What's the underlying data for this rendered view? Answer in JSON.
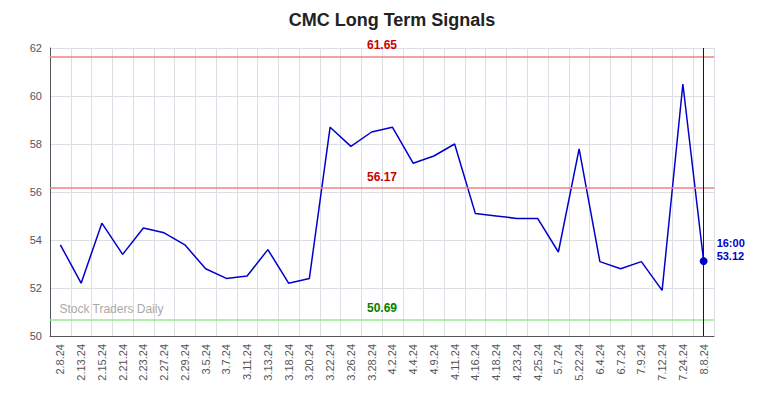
{
  "chart_data": {
    "type": "line",
    "title": "CMC Long Term Signals",
    "categories": [
      "2.8.24",
      "2.13.24",
      "2.15.24",
      "2.21.24",
      "2.23.24",
      "2.27.24",
      "2.29.24",
      "3.5.24",
      "3.7.24",
      "3.11.24",
      "3.13.24",
      "3.18.24",
      "3.20.24",
      "3.22.24",
      "3.26.24",
      "3.28.24",
      "4.2.24",
      "4.4.24",
      "4.9.24",
      "4.11.24",
      "4.16.24",
      "4.18.24",
      "4.23.24",
      "4.25.24",
      "5.7.24",
      "5.22.24",
      "6.4.24",
      "6.7.24",
      "7.9.24",
      "7.12.24",
      "7.24.24",
      "8.8.24"
    ],
    "values": [
      53.8,
      52.2,
      54.7,
      53.4,
      54.5,
      54.3,
      53.8,
      52.8,
      52.4,
      52.5,
      53.6,
      52.2,
      52.4,
      58.7,
      57.9,
      58.5,
      58.7,
      57.2,
      57.5,
      58.0,
      55.1,
      55.0,
      54.9,
      54.9,
      53.5,
      57.8,
      53.1,
      52.8,
      53.1,
      51.9,
      60.5,
      53.12
    ],
    "color": "#0000cc",
    "ylim": [
      50,
      62
    ],
    "yticks": [
      50,
      52,
      54,
      56,
      58,
      60,
      62
    ],
    "grid": true,
    "hlines": [
      {
        "value": 61.65,
        "color": "#f08080",
        "label_color": "#cc0000"
      },
      {
        "value": 56.17,
        "color": "#f08080",
        "label_color": "#cc0000"
      },
      {
        "value": 50.69,
        "color": "#90ee90",
        "label_color": "#008000"
      }
    ],
    "vline": "8.8.24",
    "annotations": [
      {
        "text": "16:00\n53.12",
        "x": "8.8.24",
        "y": 53.12,
        "color": "#0000cc"
      },
      {
        "text": "Stock Traders Daily",
        "color": "#aaaaaa"
      }
    ]
  }
}
